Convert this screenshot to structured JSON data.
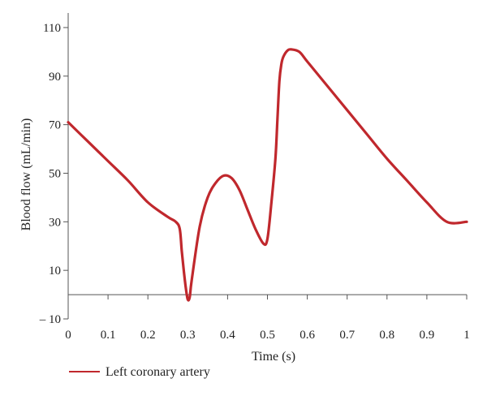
{
  "chart_data": {
    "type": "line",
    "title": "",
    "xlabel": "Time (s)",
    "ylabel": "Blood flow (mL/min)",
    "xlim": [
      0,
      1
    ],
    "ylim": [
      -10,
      116
    ],
    "x_ticks": [
      0,
      0.1,
      0.2,
      0.3,
      0.4,
      0.5,
      0.6,
      0.7,
      0.8,
      0.9,
      1
    ],
    "x_tick_labels": [
      "0",
      "0.1",
      "0.2",
      "0.3",
      "0.4",
      "0.5",
      "0.6",
      "0.7",
      "0.8",
      "0.9",
      "1"
    ],
    "y_ticks": [
      -10,
      10,
      30,
      50,
      70,
      90,
      110
    ],
    "y_tick_labels": [
      "– 10",
      "10",
      "30",
      "50",
      "70",
      "90",
      "110"
    ],
    "grid": false,
    "legend_position": "bottom-left",
    "series": [
      {
        "name": "Left coronary artery",
        "color": "#c0282d",
        "x": [
          0,
          0.05,
          0.1,
          0.15,
          0.2,
          0.25,
          0.27,
          0.28,
          0.285,
          0.29,
          0.295,
          0.3,
          0.305,
          0.31,
          0.33,
          0.35,
          0.37,
          0.39,
          0.41,
          0.43,
          0.45,
          0.47,
          0.49,
          0.5,
          0.51,
          0.52,
          0.525,
          0.53,
          0.535,
          0.54,
          0.55,
          0.56,
          0.58,
          0.6,
          0.65,
          0.7,
          0.75,
          0.8,
          0.85,
          0.9,
          0.95,
          1
        ],
        "y": [
          71,
          63,
          55,
          47,
          38,
          32,
          30,
          27,
          18,
          10,
          3,
          -2,
          -1,
          6,
          28,
          40,
          46,
          49,
          48,
          43,
          35,
          27,
          21,
          23,
          38,
          56,
          72,
          88,
          95,
          98,
          100.5,
          101,
          100,
          96,
          86,
          76,
          66,
          56,
          47,
          38,
          30,
          30
        ]
      }
    ]
  }
}
